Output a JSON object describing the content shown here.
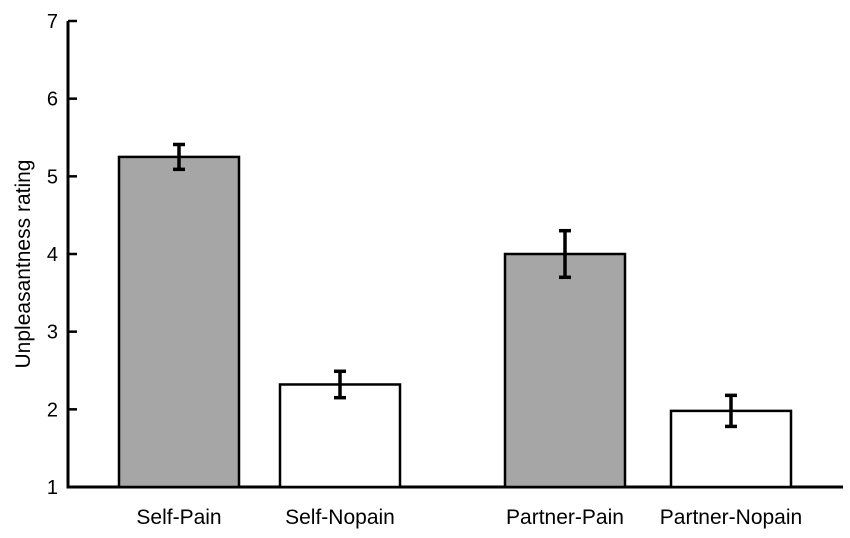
{
  "chart_data": {
    "type": "bar",
    "title": "",
    "xlabel": "",
    "ylabel": "Unpleasantness rating",
    "ylim": [
      1,
      7
    ],
    "yticks": [
      1,
      2,
      3,
      4,
      5,
      6,
      7
    ],
    "categories": [
      "Self-Pain",
      "Self-Nopain",
      "Partner-Pain",
      "Partner-Nopain"
    ],
    "values": [
      5.25,
      2.32,
      4.0,
      1.98
    ],
    "errors": [
      0.16,
      0.17,
      0.3,
      0.2
    ],
    "bar_colors": [
      "#a6a6a6",
      "#ffffff",
      "#a6a6a6",
      "#ffffff"
    ],
    "bar_edge_color": "#000000",
    "grid": false,
    "legend": "none"
  }
}
